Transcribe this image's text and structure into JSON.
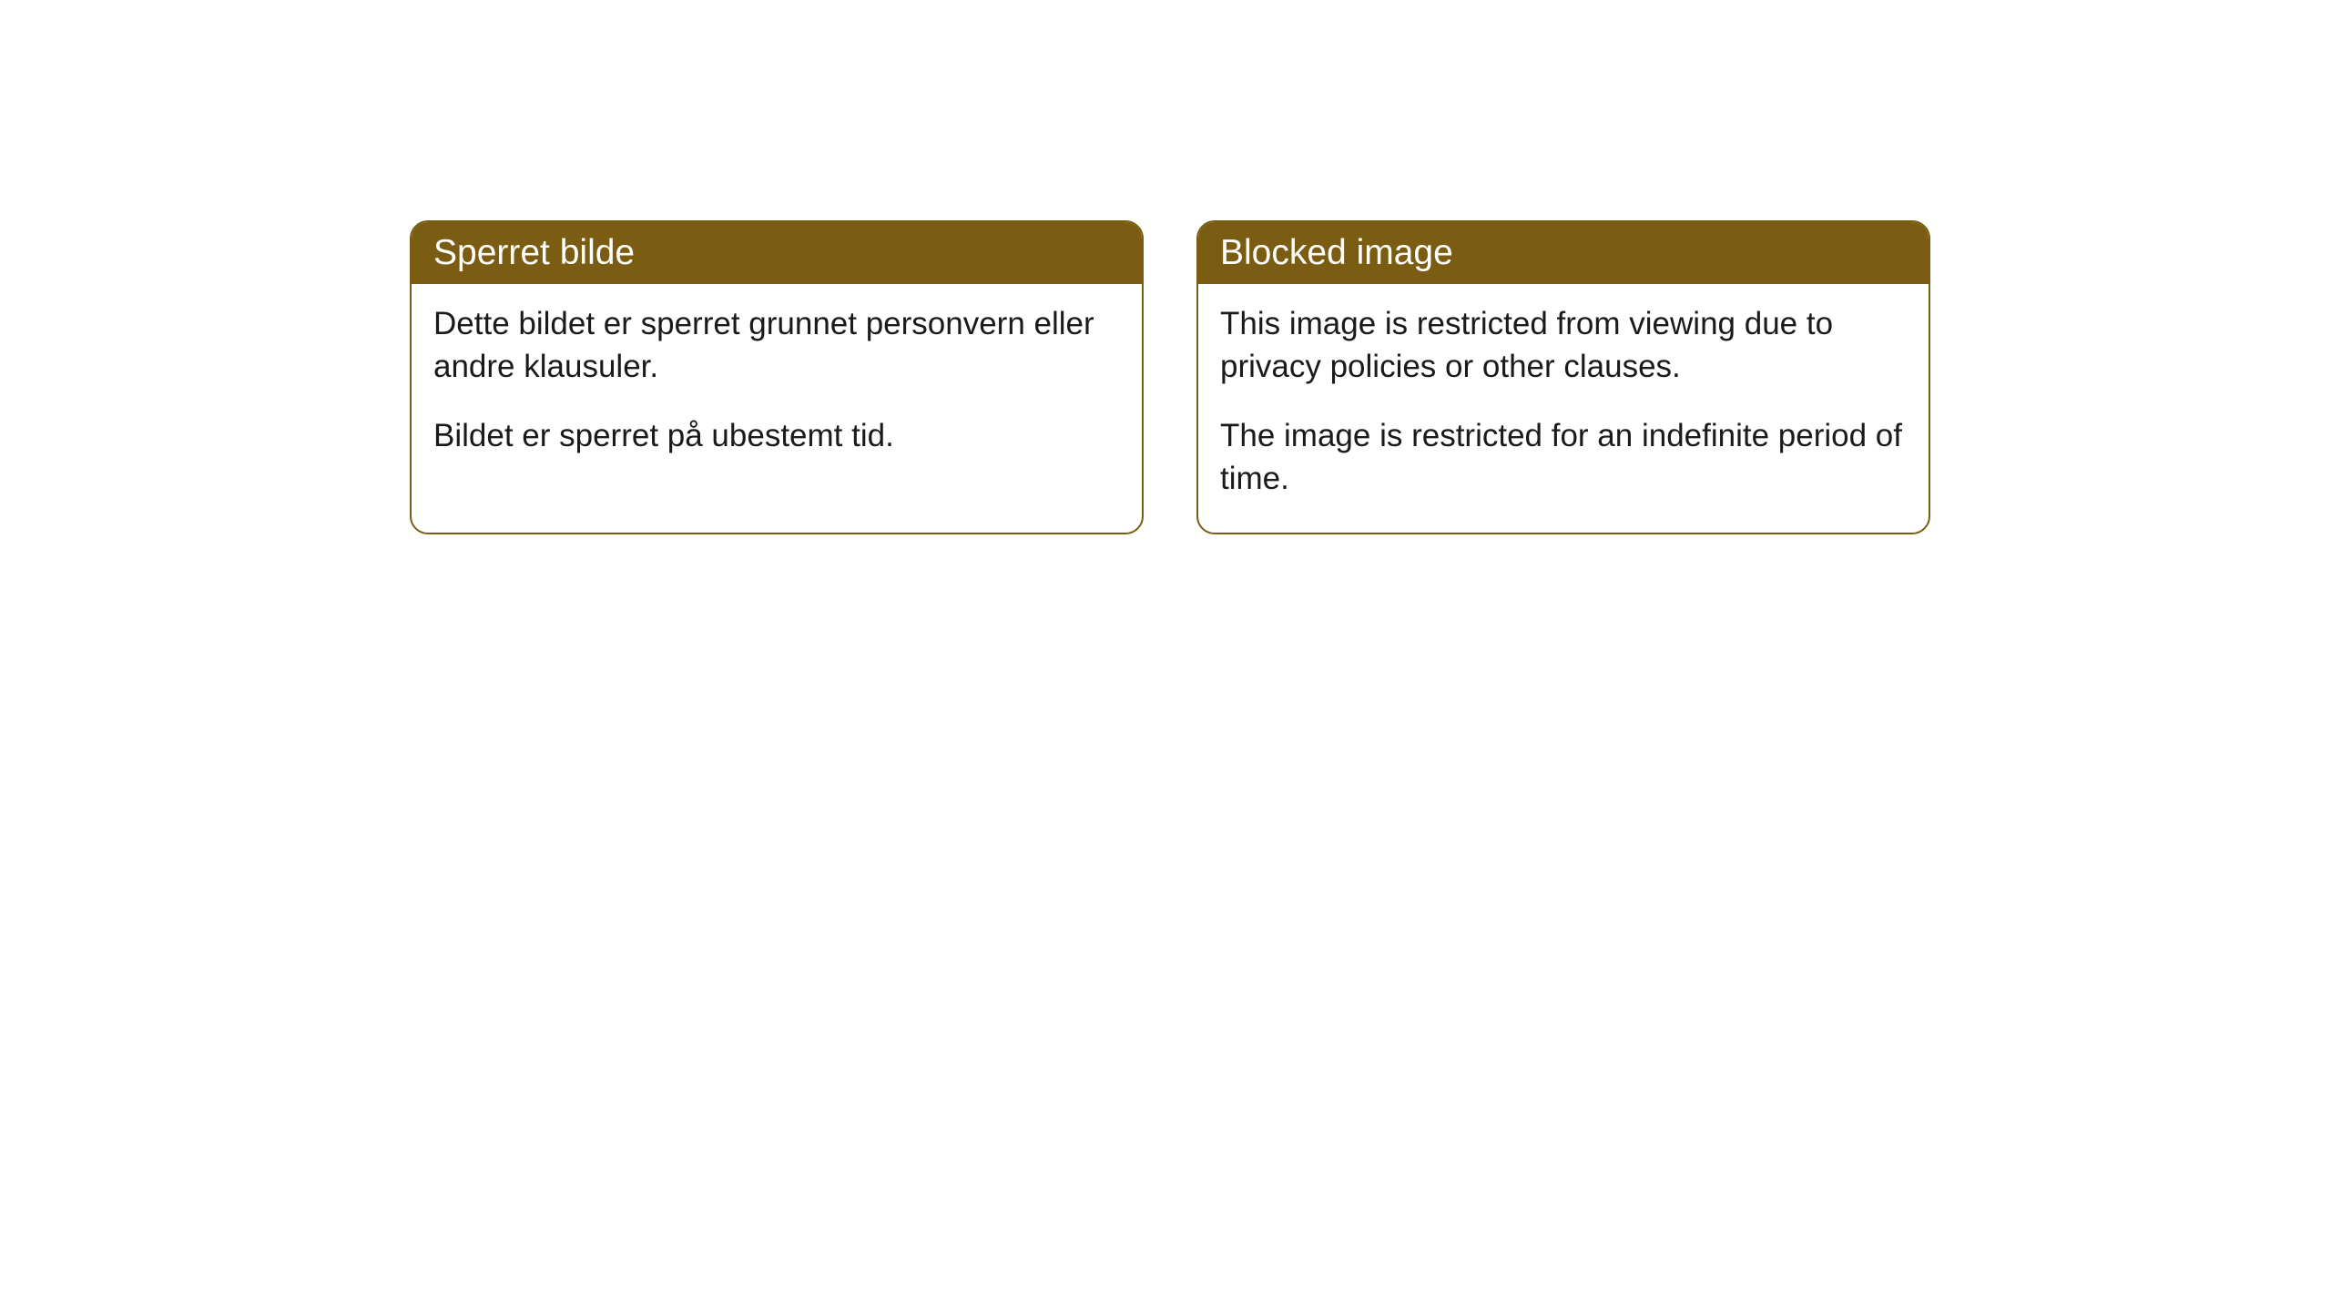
{
  "cards": [
    {
      "title": "Sperret bilde",
      "paragraph1": "Dette bildet er sperret grunnet personvern eller andre klausuler.",
      "paragraph2": "Bildet er sperret på ubestemt tid."
    },
    {
      "title": "Blocked image",
      "paragraph1": "This image is restricted from viewing due to privacy policies or other clauses.",
      "paragraph2": "The image is restricted for an indefinite period of time."
    }
  ],
  "style": {
    "header_background": "#7a5c12",
    "header_text_color": "#ffffff",
    "border_color": "#7a5c12",
    "body_text_color": "#1a1a1a",
    "background_color": "#ffffff",
    "border_radius": 20,
    "header_fontsize": 39,
    "body_fontsize": 35
  }
}
